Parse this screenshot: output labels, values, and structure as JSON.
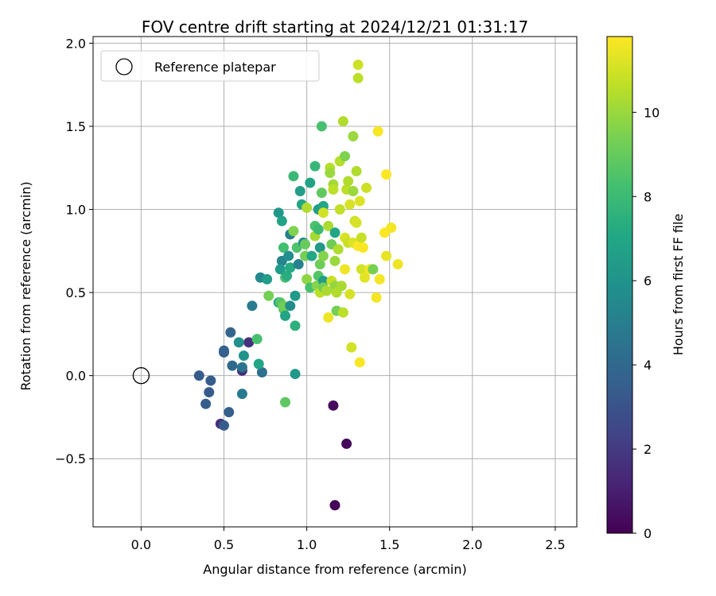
{
  "chart_data": {
    "type": "scatter",
    "title": "FOV centre drift starting at 2024/12/21 01:31:17",
    "xlabel": "Angular distance from reference (arcmin)",
    "ylabel": "Rotation from reference (arcmin)",
    "xlim": [
      -0.29,
      2.63
    ],
    "ylim": [
      -0.91,
      2.04
    ],
    "xticks": [
      0.0,
      0.5,
      1.0,
      1.5,
      2.0,
      2.5
    ],
    "xtick_labels": [
      "0.0",
      "0.5",
      "1.0",
      "1.5",
      "2.0",
      "2.5"
    ],
    "yticks": [
      -0.5,
      0.0,
      0.5,
      1.0,
      1.5,
      2.0
    ],
    "ytick_labels": [
      "−0.5",
      "0.0",
      "0.5",
      "1.0",
      "1.5",
      "2.0"
    ],
    "grid": true,
    "legend": {
      "placement": "top-left",
      "entries": [
        {
          "label": "Reference platepar",
          "marker": "open-circle"
        }
      ]
    },
    "reference_point": {
      "x": 0.0,
      "y": 0.0
    },
    "colorbar": {
      "label": "Hours from first FF file",
      "colormap": "viridis",
      "range": [
        0,
        11.8
      ],
      "ticks": [
        0,
        2,
        4,
        6,
        8,
        10
      ],
      "tick_labels": [
        "0",
        "2",
        "4",
        "6",
        "8",
        "10"
      ]
    },
    "points": [
      {
        "x": 1.17,
        "y": -0.78,
        "c": 0.1
      },
      {
        "x": 1.24,
        "y": -0.41,
        "c": 0.2
      },
      {
        "x": 1.16,
        "y": -0.18,
        "c": 0.3
      },
      {
        "x": 0.48,
        "y": -0.29,
        "c": 1.6
      },
      {
        "x": 0.61,
        "y": 0.03,
        "c": 1.6
      },
      {
        "x": 0.65,
        "y": 0.2,
        "c": 1.7
      },
      {
        "x": 0.5,
        "y": -0.3,
        "c": 3.4
      },
      {
        "x": 0.39,
        "y": -0.17,
        "c": 3.4
      },
      {
        "x": 0.41,
        "y": -0.1,
        "c": 3.4
      },
      {
        "x": 0.35,
        "y": 0.0,
        "c": 3.4
      },
      {
        "x": 0.42,
        "y": -0.03,
        "c": 3.4
      },
      {
        "x": 0.53,
        "y": -0.22,
        "c": 3.6
      },
      {
        "x": 0.5,
        "y": 0.14,
        "c": 3.6
      },
      {
        "x": 0.5,
        "y": 0.15,
        "c": 3.7
      },
      {
        "x": 0.54,
        "y": 0.26,
        "c": 3.8
      },
      {
        "x": 0.55,
        "y": 0.06,
        "c": 4.0
      },
      {
        "x": 0.61,
        "y": -0.11,
        "c": 4.8
      },
      {
        "x": 0.61,
        "y": 0.05,
        "c": 4.5
      },
      {
        "x": 0.59,
        "y": 0.2,
        "c": 5.8
      },
      {
        "x": 0.62,
        "y": 0.12,
        "c": 6.0
      },
      {
        "x": 0.73,
        "y": 0.02,
        "c": 4.3
      },
      {
        "x": 0.67,
        "y": 0.42,
        "c": 4.8
      },
      {
        "x": 0.71,
        "y": 0.07,
        "c": 7.0
      },
      {
        "x": 0.7,
        "y": 0.22,
        "c": 8.3
      },
      {
        "x": 0.72,
        "y": 0.59,
        "c": 5.5
      },
      {
        "x": 0.76,
        "y": 0.58,
        "c": 6.5
      },
      {
        "x": 0.77,
        "y": 0.48,
        "c": 9.3
      },
      {
        "x": 0.83,
        "y": 0.44,
        "c": 6.9
      },
      {
        "x": 0.84,
        "y": 0.44,
        "c": 8.6
      },
      {
        "x": 0.85,
        "y": 0.69,
        "c": 5.3
      },
      {
        "x": 0.84,
        "y": 0.64,
        "c": 6.4
      },
      {
        "x": 0.83,
        "y": 0.98,
        "c": 6.2
      },
      {
        "x": 0.85,
        "y": 0.93,
        "c": 6.8
      },
      {
        "x": 0.86,
        "y": 0.4,
        "c": 8.8
      },
      {
        "x": 0.86,
        "y": 0.42,
        "c": 9.2
      },
      {
        "x": 0.87,
        "y": 0.36,
        "c": 6.9
      },
      {
        "x": 0.87,
        "y": 0.59,
        "c": 8.4
      },
      {
        "x": 0.86,
        "y": 0.77,
        "c": 8.2
      },
      {
        "x": 0.88,
        "y": 0.6,
        "c": 7.3
      },
      {
        "x": 0.89,
        "y": 0.72,
        "c": 5.8
      },
      {
        "x": 0.9,
        "y": 0.42,
        "c": 5.7
      },
      {
        "x": 0.9,
        "y": 0.85,
        "c": 5.1
      },
      {
        "x": 0.92,
        "y": 1.2,
        "c": 7.9
      },
      {
        "x": 0.92,
        "y": 0.87,
        "c": 9.5
      },
      {
        "x": 0.9,
        "y": 0.65,
        "c": 7.2
      },
      {
        "x": 0.93,
        "y": 0.48,
        "c": 6.3
      },
      {
        "x": 0.93,
        "y": 0.3,
        "c": 7.5
      },
      {
        "x": 0.94,
        "y": 0.77,
        "c": 8.5
      },
      {
        "x": 0.93,
        "y": 0.01,
        "c": 6.3
      },
      {
        "x": 0.87,
        "y": -0.16,
        "c": 8.8
      },
      {
        "x": 0.95,
        "y": 0.67,
        "c": 5.2
      },
      {
        "x": 0.96,
        "y": 1.11,
        "c": 6.5
      },
      {
        "x": 0.97,
        "y": 1.03,
        "c": 7.0
      },
      {
        "x": 0.98,
        "y": 0.8,
        "c": 5.6
      },
      {
        "x": 0.99,
        "y": 0.79,
        "c": 9.0
      },
      {
        "x": 0.99,
        "y": 0.72,
        "c": 9.3
      },
      {
        "x": 1.0,
        "y": 0.58,
        "c": 9.8
      },
      {
        "x": 1.0,
        "y": 1.01,
        "c": 10.4
      },
      {
        "x": 1.02,
        "y": 1.16,
        "c": 6.8
      },
      {
        "x": 1.03,
        "y": 0.72,
        "c": 7.0
      },
      {
        "x": 1.02,
        "y": 0.53,
        "c": 8.3
      },
      {
        "x": 1.05,
        "y": 1.26,
        "c": 7.8
      },
      {
        "x": 1.05,
        "y": 0.9,
        "c": 8.4
      },
      {
        "x": 1.05,
        "y": 0.84,
        "c": 10.2
      },
      {
        "x": 1.06,
        "y": 0.54,
        "c": 9.6
      },
      {
        "x": 1.07,
        "y": 0.6,
        "c": 8.6
      },
      {
        "x": 1.07,
        "y": 1.0,
        "c": 6.5
      },
      {
        "x": 1.07,
        "y": 0.88,
        "c": 8.0
      },
      {
        "x": 1.08,
        "y": 0.5,
        "c": 10.6
      },
      {
        "x": 1.08,
        "y": 0.67,
        "c": 9.2
      },
      {
        "x": 1.08,
        "y": 0.77,
        "c": 6.3
      },
      {
        "x": 1.09,
        "y": 1.5,
        "c": 8.3
      },
      {
        "x": 1.09,
        "y": 1.1,
        "c": 8.9
      },
      {
        "x": 1.1,
        "y": 1.02,
        "c": 7.0
      },
      {
        "x": 1.1,
        "y": 0.98,
        "c": 11.0
      },
      {
        "x": 1.1,
        "y": 0.72,
        "c": 9.6
      },
      {
        "x": 1.1,
        "y": 0.57,
        "c": 6.5
      },
      {
        "x": 1.1,
        "y": 0.53,
        "c": 9.3
      },
      {
        "x": 1.12,
        "y": 0.51,
        "c": 10.3
      },
      {
        "x": 1.13,
        "y": 0.9,
        "c": 10.3
      },
      {
        "x": 1.13,
        "y": 0.35,
        "c": 11.5
      },
      {
        "x": 1.14,
        "y": 1.25,
        "c": 10.5
      },
      {
        "x": 1.14,
        "y": 1.22,
        "c": 10.0
      },
      {
        "x": 1.15,
        "y": 0.57,
        "c": 10.8
      },
      {
        "x": 1.15,
        "y": 0.79,
        "c": 9.2
      },
      {
        "x": 1.16,
        "y": 1.15,
        "c": 10.2
      },
      {
        "x": 1.16,
        "y": 1.12,
        "c": 10.6
      },
      {
        "x": 1.17,
        "y": 0.69,
        "c": 10.0
      },
      {
        "x": 1.17,
        "y": 0.86,
        "c": 7.0
      },
      {
        "x": 1.17,
        "y": 0.54,
        "c": 9.9
      },
      {
        "x": 1.18,
        "y": 0.39,
        "c": 9.3
      },
      {
        "x": 1.18,
        "y": 0.5,
        "c": 10.4
      },
      {
        "x": 1.19,
        "y": 0.76,
        "c": 10.4
      },
      {
        "x": 1.2,
        "y": 1.29,
        "c": 10.5
      },
      {
        "x": 1.2,
        "y": 1.0,
        "c": 10.7
      },
      {
        "x": 1.21,
        "y": 0.54,
        "c": 10.3
      },
      {
        "x": 1.22,
        "y": 0.38,
        "c": 10.6
      },
      {
        "x": 1.22,
        "y": 1.53,
        "c": 10.4
      },
      {
        "x": 1.23,
        "y": 1.32,
        "c": 9.5
      },
      {
        "x": 1.23,
        "y": 0.83,
        "c": 11.1
      },
      {
        "x": 1.23,
        "y": 0.64,
        "c": 11.5
      },
      {
        "x": 1.24,
        "y": 1.12,
        "c": 10.6
      },
      {
        "x": 1.25,
        "y": 1.17,
        "c": 10.4
      },
      {
        "x": 1.25,
        "y": 0.8,
        "c": 10.8
      },
      {
        "x": 1.26,
        "y": 1.03,
        "c": 11.1
      },
      {
        "x": 1.26,
        "y": 0.49,
        "c": 11.1
      },
      {
        "x": 1.27,
        "y": 0.17,
        "c": 11.0
      },
      {
        "x": 1.28,
        "y": 1.44,
        "c": 10.0
      },
      {
        "x": 1.28,
        "y": 1.11,
        "c": 10.0
      },
      {
        "x": 1.28,
        "y": 0.8,
        "c": 11.2
      },
      {
        "x": 1.29,
        "y": 0.93,
        "c": 10.9
      },
      {
        "x": 1.3,
        "y": 1.23,
        "c": 10.4
      },
      {
        "x": 1.3,
        "y": 0.92,
        "c": 11.1
      },
      {
        "x": 1.31,
        "y": 0.78,
        "c": 11.8
      },
      {
        "x": 1.31,
        "y": 1.87,
        "c": 10.9
      },
      {
        "x": 1.31,
        "y": 1.79,
        "c": 10.6
      },
      {
        "x": 1.32,
        "y": 0.08,
        "c": 11.7
      },
      {
        "x": 1.32,
        "y": 1.05,
        "c": 11.2
      },
      {
        "x": 1.33,
        "y": 0.83,
        "c": 10.8
      },
      {
        "x": 1.33,
        "y": 0.64,
        "c": 11.0
      },
      {
        "x": 1.34,
        "y": 0.77,
        "c": 11.7
      },
      {
        "x": 1.35,
        "y": 0.59,
        "c": 11.3
      },
      {
        "x": 1.36,
        "y": 1.13,
        "c": 10.9
      },
      {
        "x": 1.38,
        "y": 0.64,
        "c": 11.6
      },
      {
        "x": 1.4,
        "y": 0.64,
        "c": 9.4
      },
      {
        "x": 1.42,
        "y": 0.47,
        "c": 11.6
      },
      {
        "x": 1.43,
        "y": 1.47,
        "c": 11.7
      },
      {
        "x": 1.44,
        "y": 0.58,
        "c": 11.6
      },
      {
        "x": 1.47,
        "y": 0.86,
        "c": 11.8
      },
      {
        "x": 1.48,
        "y": 1.21,
        "c": 11.8
      },
      {
        "x": 1.48,
        "y": 0.72,
        "c": 11.4
      },
      {
        "x": 1.51,
        "y": 0.89,
        "c": 11.6
      },
      {
        "x": 1.55,
        "y": 0.67,
        "c": 11.5
      }
    ]
  }
}
